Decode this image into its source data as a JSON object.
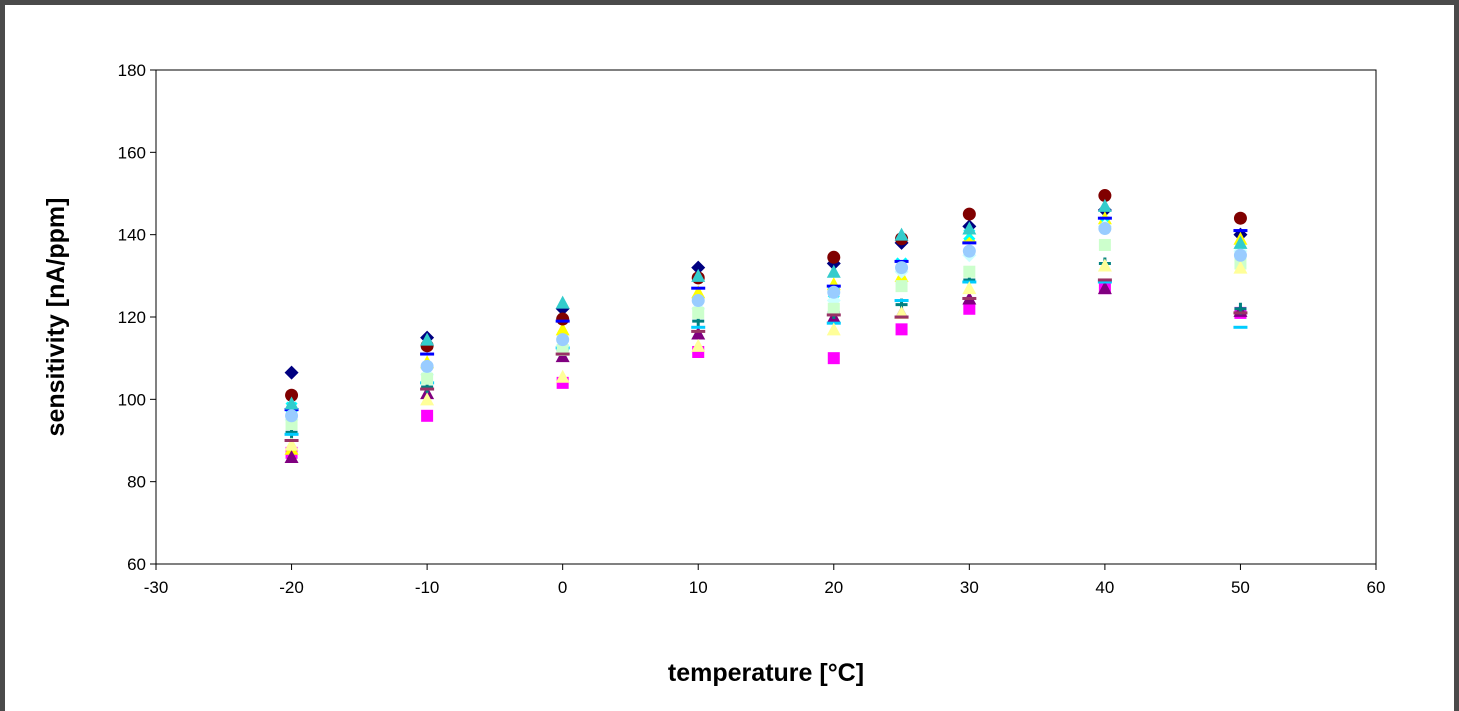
{
  "chart_data": {
    "type": "scatter",
    "title": "",
    "xlabel": "temperature [°C]",
    "ylabel": "sensitivity [nA/ppm]",
    "xlim": [
      -30,
      60
    ],
    "ylim": [
      60,
      180
    ],
    "x_ticks": [
      -30,
      -20,
      -10,
      0,
      10,
      20,
      30,
      40,
      50,
      60
    ],
    "y_ticks": [
      60,
      80,
      100,
      120,
      140,
      160,
      180
    ],
    "grid": false,
    "legend": "none",
    "series": [
      {
        "color": "#000080",
        "marker": "diamond",
        "points": [
          [
            -20,
            106.5
          ],
          [
            -10,
            115
          ],
          [
            0,
            122
          ],
          [
            10,
            132
          ],
          [
            20,
            133
          ],
          [
            25,
            138
          ],
          [
            30,
            142
          ],
          [
            40,
            146
          ],
          [
            50,
            140
          ]
        ]
      },
      {
        "color": "#ff00ff",
        "marker": "square",
        "points": [
          [
            -20,
            87
          ],
          [
            -10,
            96
          ],
          [
            0,
            104
          ],
          [
            10,
            111.5
          ],
          [
            20,
            110
          ],
          [
            25,
            117
          ],
          [
            30,
            122
          ],
          [
            40,
            127
          ],
          [
            50,
            121
          ]
        ]
      },
      {
        "color": "#ffff00",
        "marker": "triangle",
        "points": [
          [
            -20,
            88
          ],
          [
            -10,
            109
          ],
          [
            0,
            117
          ],
          [
            10,
            126
          ],
          [
            20,
            128
          ],
          [
            25,
            130
          ],
          [
            30,
            139.5
          ],
          [
            40,
            144
          ],
          [
            50,
            139
          ]
        ]
      },
      {
        "color": "#00ffff",
        "marker": "x",
        "points": [
          [
            -20,
            98
          ],
          [
            -10,
            107
          ],
          [
            0,
            113
          ],
          [
            10,
            123
          ],
          [
            20,
            126
          ],
          [
            25,
            133
          ],
          [
            30,
            140
          ],
          [
            40,
            143
          ],
          [
            50,
            136
          ]
        ]
      },
      {
        "color": "#800080",
        "marker": "triangle",
        "points": [
          [
            -20,
            86
          ],
          [
            -10,
            101.5
          ],
          [
            0,
            110.5
          ],
          [
            10,
            116
          ],
          [
            20,
            120
          ],
          [
            25,
            121
          ],
          [
            30,
            124.5
          ],
          [
            40,
            127
          ],
          [
            50,
            121.5
          ]
        ]
      },
      {
        "color": "#800000",
        "marker": "circle",
        "points": [
          [
            -20,
            101
          ],
          [
            -10,
            113
          ],
          [
            0,
            119.5
          ],
          [
            10,
            129.5
          ],
          [
            20,
            134.5
          ],
          [
            25,
            139
          ],
          [
            30,
            145
          ],
          [
            40,
            149.5
          ],
          [
            50,
            144
          ]
        ]
      },
      {
        "color": "#008080",
        "marker": "plus",
        "points": [
          [
            -20,
            92
          ],
          [
            -10,
            103
          ],
          [
            0,
            112
          ],
          [
            10,
            119
          ],
          [
            20,
            121
          ],
          [
            25,
            123
          ],
          [
            30,
            129
          ],
          [
            40,
            133
          ],
          [
            50,
            122
          ]
        ]
      },
      {
        "color": "#0000ff",
        "marker": "dash",
        "points": [
          [
            -20,
            97.5
          ],
          [
            -10,
            111
          ],
          [
            0,
            119
          ],
          [
            10,
            127
          ],
          [
            20,
            127.5
          ],
          [
            25,
            133.5
          ],
          [
            30,
            138
          ],
          [
            40,
            144
          ],
          [
            50,
            141
          ]
        ]
      },
      {
        "color": "#00ccff",
        "marker": "dash",
        "points": [
          [
            -20,
            91.5
          ],
          [
            -10,
            104
          ],
          [
            0,
            112.5
          ],
          [
            10,
            117.5
          ],
          [
            20,
            118.5
          ],
          [
            25,
            124
          ],
          [
            30,
            128.5
          ],
          [
            40,
            128.5
          ],
          [
            50,
            117.5
          ]
        ]
      },
      {
        "color": "#ccffff",
        "marker": "diamond",
        "points": [
          [
            -20,
            95
          ],
          [
            -10,
            106
          ],
          [
            0,
            113
          ],
          [
            10,
            122
          ],
          [
            20,
            124
          ],
          [
            25,
            131
          ],
          [
            30,
            135
          ],
          [
            40,
            142
          ],
          [
            50,
            136
          ]
        ]
      },
      {
        "color": "#ccffcc",
        "marker": "square",
        "points": [
          [
            -20,
            94
          ],
          [
            -10,
            105
          ],
          [
            0,
            112
          ],
          [
            10,
            121
          ],
          [
            20,
            122
          ],
          [
            25,
            127.5
          ],
          [
            30,
            131
          ],
          [
            40,
            137.5
          ],
          [
            50,
            133
          ]
        ]
      },
      {
        "color": "#ffff99",
        "marker": "triangle",
        "points": [
          [
            -20,
            89
          ],
          [
            -10,
            100
          ],
          [
            0,
            105.5
          ],
          [
            10,
            113
          ],
          [
            20,
            117
          ],
          [
            25,
            121
          ],
          [
            30,
            127
          ],
          [
            40,
            132.5
          ],
          [
            50,
            132
          ]
        ]
      },
      {
        "color": "#33cccc",
        "marker": "triangle",
        "points": [
          [
            -20,
            99
          ],
          [
            -10,
            114.5
          ],
          [
            0,
            123.5
          ],
          [
            10,
            130
          ],
          [
            20,
            131
          ],
          [
            25,
            140
          ],
          [
            30,
            141.5
          ],
          [
            40,
            147
          ],
          [
            50,
            138
          ]
        ]
      },
      {
        "color": "#993366",
        "marker": "dash",
        "points": [
          [
            -20,
            90
          ],
          [
            -10,
            102.5
          ],
          [
            0,
            111
          ],
          [
            10,
            116.5
          ],
          [
            20,
            120.5
          ],
          [
            25,
            120
          ],
          [
            30,
            124.5
          ],
          [
            40,
            129
          ],
          [
            50,
            121
          ]
        ]
      },
      {
        "color": "#99ccff",
        "marker": "circle",
        "points": [
          [
            -20,
            96
          ],
          [
            -10,
            108
          ],
          [
            0,
            114.5
          ],
          [
            10,
            124
          ],
          [
            20,
            126
          ],
          [
            25,
            132
          ],
          [
            30,
            136
          ],
          [
            40,
            141.5
          ],
          [
            50,
            135
          ]
        ]
      }
    ]
  }
}
